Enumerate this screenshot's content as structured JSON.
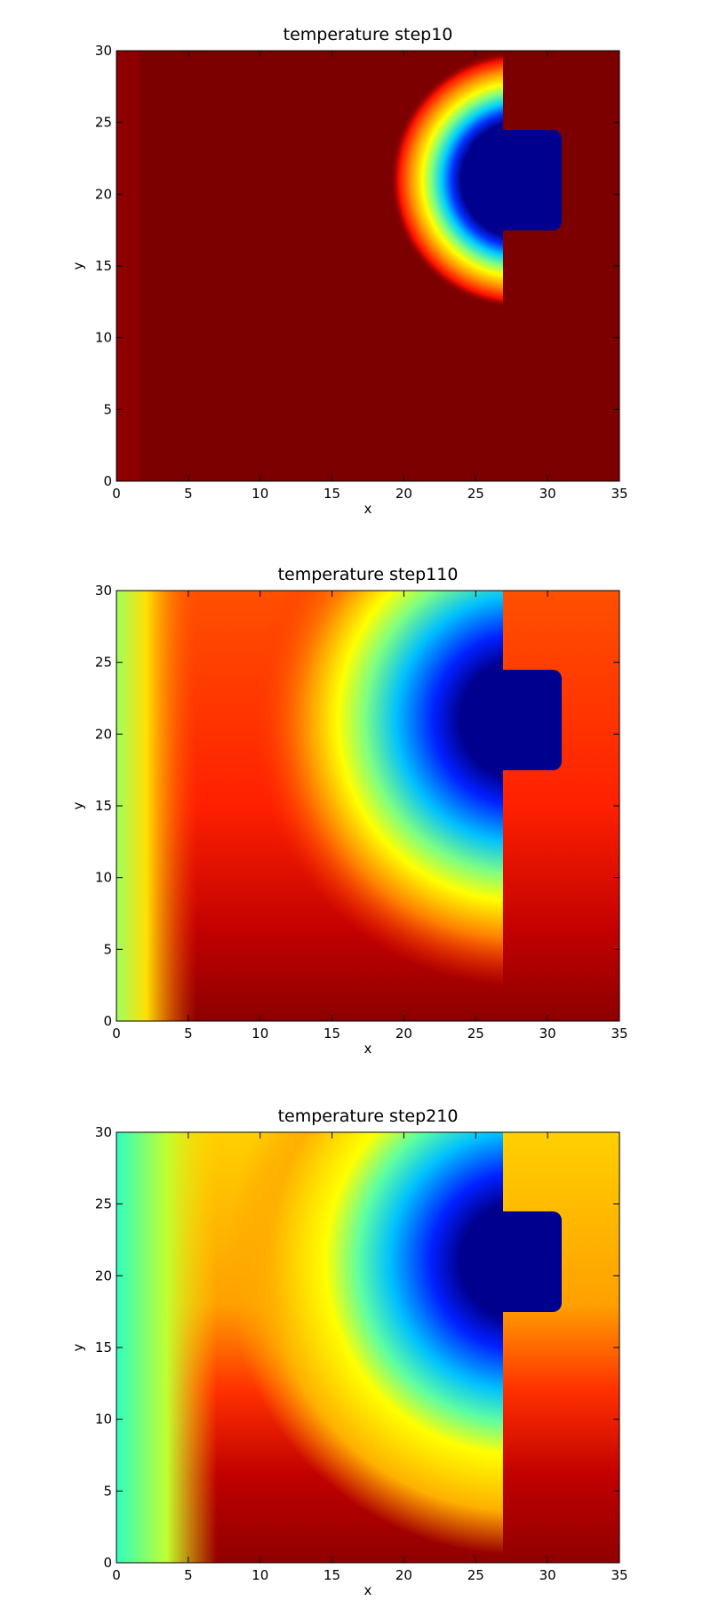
{
  "chart_data": [
    {
      "type": "heatmap",
      "title": "temperature step10",
      "x_label": "x",
      "y_label": "y",
      "xlim": [
        0,
        35
      ],
      "ylim": [
        0,
        30
      ],
      "xticks": [
        0,
        5,
        10,
        15,
        20,
        25,
        30,
        35
      ],
      "yticks": [
        0,
        5,
        10,
        15,
        20,
        25,
        30
      ]
    },
    {
      "type": "heatmap",
      "title": "temperature step110",
      "x_label": "x",
      "y_label": "y",
      "xlim": [
        0,
        35
      ],
      "ylim": [
        0,
        30
      ],
      "xticks": [
        0,
        5,
        10,
        15,
        20,
        25,
        30,
        35
      ],
      "yticks": [
        0,
        5,
        10,
        15,
        20,
        25,
        30
      ]
    },
    {
      "type": "heatmap",
      "title": "temperature step210",
      "x_label": "x",
      "y_label": "y",
      "xlim": [
        0,
        35
      ],
      "ylim": [
        0,
        30
      ],
      "xticks": [
        0,
        5,
        10,
        15,
        20,
        25,
        30,
        35
      ],
      "yticks": [
        0,
        5,
        10,
        15,
        20,
        25,
        30
      ]
    }
  ]
}
